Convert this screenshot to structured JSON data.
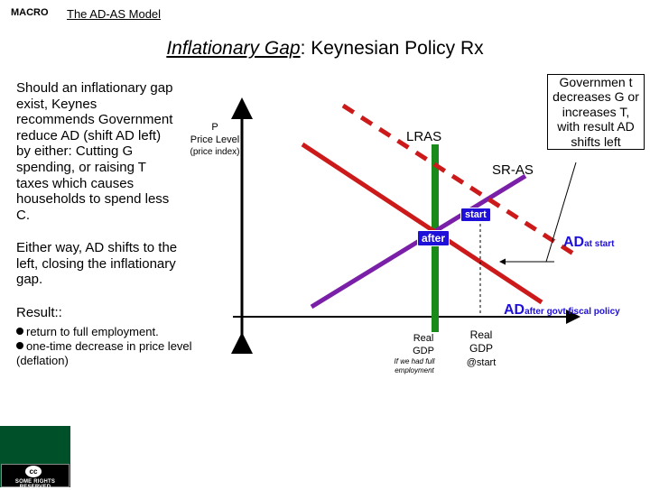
{
  "header": {
    "course": "MACRO",
    "model": "The AD-AS Model"
  },
  "title": {
    "underlined": "Inflationary Gap",
    "rest": ": Keynesian Policy Rx"
  },
  "text": {
    "p1": "Should an inflationary gap exist, Keynes recommends Government reduce AD (shift AD left) by either: Cutting G spending, or raising T taxes which causes households to spend less C.",
    "p2": "Either way, AD shifts to the left, closing the inflationary gap.",
    "p3": "Result::",
    "bullet1": "return to full employment.",
    "bullet2": "one-time decrease in price level (deflation)"
  },
  "chart": {
    "p_axis": {
      "line1": "P",
      "line2": "Price Level",
      "line3": "(price index)"
    },
    "lras": "LRAS",
    "sras": "SR-AS",
    "start": "start",
    "after": "after",
    "ad_start": {
      "main": "AD",
      "sub": "at start"
    },
    "ad_after": {
      "main": "AD",
      "sub": "after govt fiscal policy"
    },
    "real_gdp_full": {
      "line1": "Real",
      "line2": "GDP",
      "note": "If we had full employment"
    },
    "real_gdp_start": {
      "line1": "Real",
      "line2": "GDP",
      "note": "@start"
    }
  },
  "callout": "Governmen t decreases G or increases T, with result AD shifts left",
  "license": {
    "badge": "cc",
    "text": "SOME RIGHTS RESERVED"
  },
  "colors": {
    "lras": "#1a8a1a",
    "sras": "#7a1fa8",
    "ad": "#cc1a1a",
    "badge": "#1e0fd9",
    "license_green": "#00512a"
  }
}
